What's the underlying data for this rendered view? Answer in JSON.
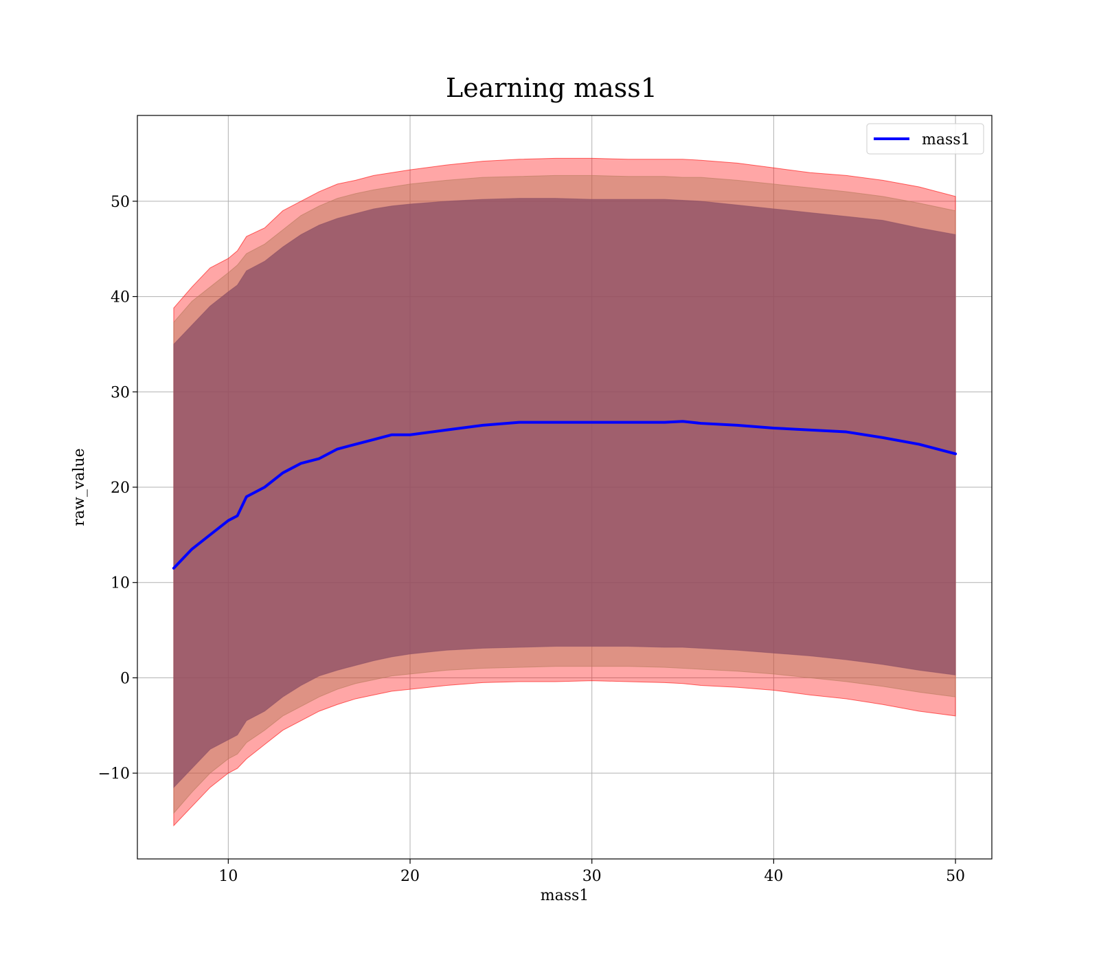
{
  "chart_data": {
    "type": "area",
    "title": "Learning mass1",
    "xlabel": "mass1",
    "ylabel": "raw_value",
    "xlim": [
      5,
      52
    ],
    "ylim": [
      -19,
      59
    ],
    "x_ticks": [
      10,
      20,
      30,
      40,
      50
    ],
    "x_tick_labels": [
      "10",
      "20",
      "30",
      "40",
      "50"
    ],
    "y_ticks": [
      -10,
      0,
      10,
      20,
      30,
      40,
      50
    ],
    "y_tick_labels": [
      "−10",
      "0",
      "10",
      "20",
      "30",
      "40",
      "50"
    ],
    "grid": true,
    "legend": {
      "position": "top-right",
      "entries": [
        "mass1"
      ]
    },
    "x": [
      7,
      8,
      9,
      10,
      10.5,
      11,
      12,
      13,
      14,
      15,
      16,
      17,
      18,
      19,
      20,
      22,
      24,
      26,
      28,
      30,
      32,
      34,
      35,
      36,
      38,
      40,
      42,
      44,
      46,
      48,
      50
    ],
    "series": [
      {
        "name": "mass1",
        "kind": "line",
        "color": "#0000ff",
        "values": [
          11.5,
          13.5,
          15.0,
          16.5,
          17.0,
          19.0,
          20.0,
          21.5,
          22.5,
          23.0,
          24.0,
          24.5,
          25.0,
          25.5,
          25.5,
          26.0,
          26.5,
          26.8,
          26.8,
          26.8,
          26.8,
          26.8,
          26.9,
          26.7,
          26.5,
          26.2,
          26.0,
          25.8,
          25.2,
          24.5,
          23.5
        ]
      },
      {
        "kind": "band",
        "color": "#ff0000",
        "upper": [
          38.8,
          41.0,
          43.0,
          44.0,
          44.8,
          46.3,
          47.2,
          49.0,
          50.0,
          51.0,
          51.8,
          52.2,
          52.7,
          53.0,
          53.3,
          53.8,
          54.2,
          54.4,
          54.5,
          54.5,
          54.4,
          54.4,
          54.4,
          54.3,
          54.0,
          53.5,
          53.0,
          52.7,
          52.2,
          51.5,
          50.5
        ],
        "lower": [
          -15.5,
          -13.5,
          -11.5,
          -10.0,
          -9.5,
          -8.5,
          -7.0,
          -5.5,
          -4.5,
          -3.5,
          -2.8,
          -2.2,
          -1.8,
          -1.4,
          -1.2,
          -0.8,
          -0.5,
          -0.4,
          -0.4,
          -0.3,
          -0.4,
          -0.5,
          -0.6,
          -0.8,
          -1.0,
          -1.3,
          -1.8,
          -2.2,
          -2.8,
          -3.5,
          -4.0
        ]
      },
      {
        "kind": "band",
        "color": "#b57a5a",
        "upper": [
          37.3,
          39.5,
          41.0,
          42.5,
          43.3,
          44.5,
          45.5,
          47.0,
          48.5,
          49.5,
          50.3,
          50.8,
          51.2,
          51.5,
          51.8,
          52.2,
          52.5,
          52.6,
          52.7,
          52.7,
          52.6,
          52.6,
          52.5,
          52.5,
          52.2,
          51.8,
          51.4,
          51.0,
          50.5,
          49.8,
          49.0
        ],
        "lower": [
          -14.2,
          -12.0,
          -10.0,
          -8.5,
          -8.0,
          -6.8,
          -5.5,
          -4.0,
          -3.0,
          -2.0,
          -1.2,
          -0.6,
          -0.2,
          0.2,
          0.4,
          0.8,
          1.0,
          1.1,
          1.2,
          1.2,
          1.2,
          1.1,
          1.0,
          0.9,
          0.7,
          0.4,
          0.0,
          -0.4,
          -0.9,
          -1.5,
          -2.0
        ]
      },
      {
        "kind": "band",
        "color": "#8b4e66",
        "upper": [
          35.0,
          37.0,
          39.0,
          40.5,
          41.2,
          42.7,
          43.7,
          45.2,
          46.5,
          47.5,
          48.2,
          48.7,
          49.2,
          49.5,
          49.7,
          50.0,
          50.2,
          50.3,
          50.3,
          50.2,
          50.2,
          50.2,
          50.1,
          50.0,
          49.6,
          49.2,
          48.8,
          48.4,
          48.0,
          47.2,
          46.5
        ],
        "lower": [
          -11.5,
          -9.5,
          -7.5,
          -6.5,
          -6.0,
          -4.5,
          -3.5,
          -2.0,
          -0.8,
          0.2,
          0.8,
          1.3,
          1.8,
          2.2,
          2.5,
          2.9,
          3.1,
          3.2,
          3.3,
          3.3,
          3.3,
          3.2,
          3.2,
          3.1,
          2.9,
          2.6,
          2.3,
          1.9,
          1.4,
          0.8,
          0.3
        ]
      }
    ]
  }
}
